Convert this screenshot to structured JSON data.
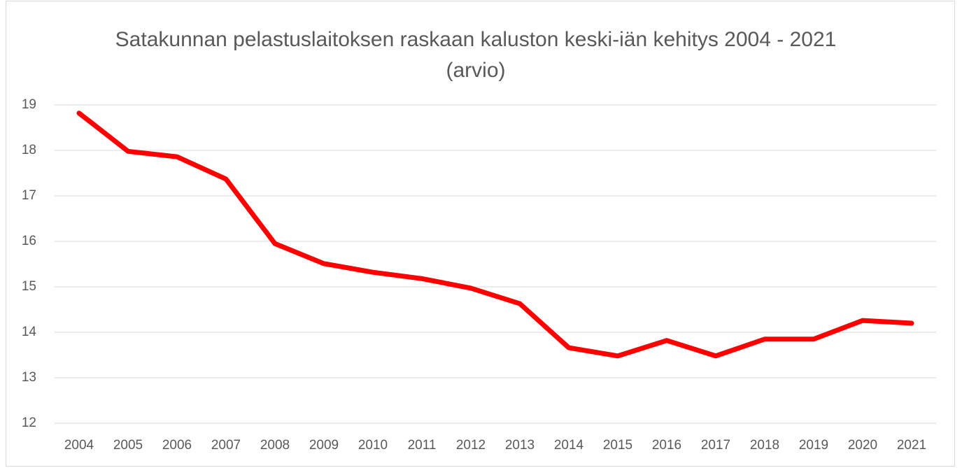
{
  "chart_data": {
    "type": "line",
    "title": "Satakunnan pelastuslaitoksen raskaan kaluston keski-iän kehitys 2004 - 2021 (arvio)",
    "categories": [
      "2004",
      "2005",
      "2006",
      "2007",
      "2008",
      "2009",
      "2010",
      "2011",
      "2012",
      "2013",
      "2014",
      "2015",
      "2016",
      "2017",
      "2018",
      "2019",
      "2020",
      "2021"
    ],
    "series": [
      {
        "name": "Keski-ikä",
        "color": "#ff0000",
        "values": [
          18.82,
          17.98,
          17.86,
          17.37,
          15.95,
          15.51,
          15.32,
          15.18,
          14.97,
          14.63,
          13.66,
          13.48,
          13.82,
          13.48,
          13.85,
          13.85,
          14.26,
          14.2
        ]
      }
    ],
    "ylim": [
      12,
      19
    ],
    "yticks": [
      12,
      13,
      14,
      15,
      16,
      17,
      18,
      19
    ],
    "grid": true
  }
}
